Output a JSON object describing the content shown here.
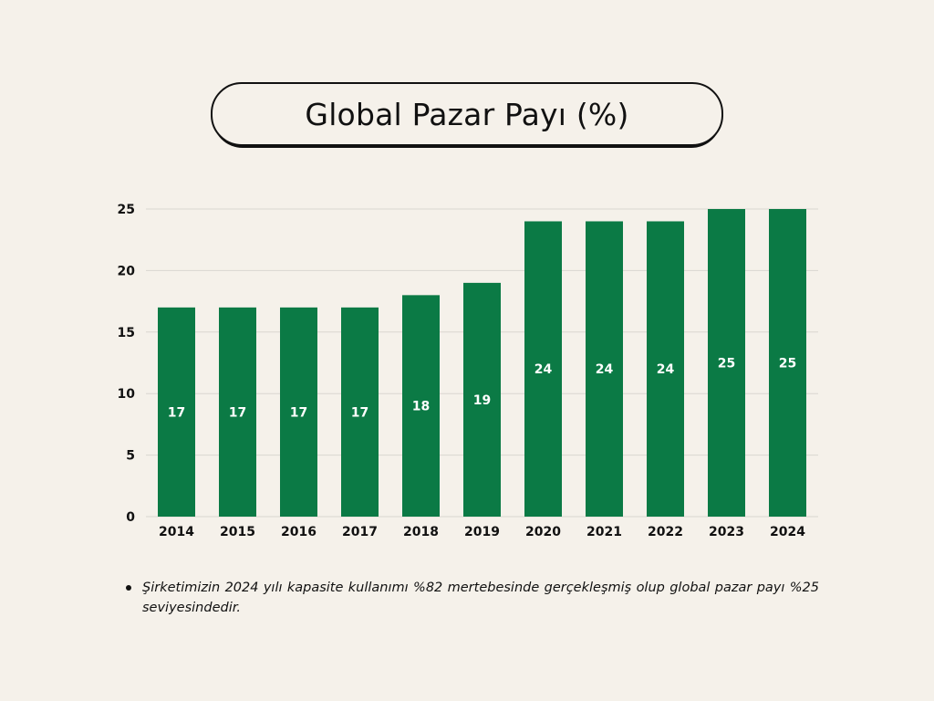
{
  "title": "Global Pazar Payı (%)",
  "colors": {
    "background": "#f5f1ea",
    "bar": "#0b7a45",
    "bar_label": "#ffffff",
    "grid": "#d9d6d0",
    "text": "#111111"
  },
  "chart_data": {
    "type": "bar",
    "title": "Global Pazar Payı (%)",
    "xlabel": "",
    "ylabel": "",
    "categories": [
      "2014",
      "2015",
      "2016",
      "2017",
      "2018",
      "2019",
      "2020",
      "2021",
      "2022",
      "2023",
      "2024"
    ],
    "values": [
      17,
      17,
      17,
      17,
      18,
      19,
      24,
      24,
      24,
      25,
      25
    ],
    "ylim": [
      0,
      25
    ],
    "yticks": [
      0,
      5,
      10,
      15,
      20,
      25
    ],
    "grid": true,
    "data_labels": true,
    "legend": "none"
  },
  "note": {
    "text": "Şirketimizin 2024 yılı kapasite kullanımı %82 mertebesinde gerçekleşmiş olup global pazar payı %25 seviyesindedir."
  }
}
